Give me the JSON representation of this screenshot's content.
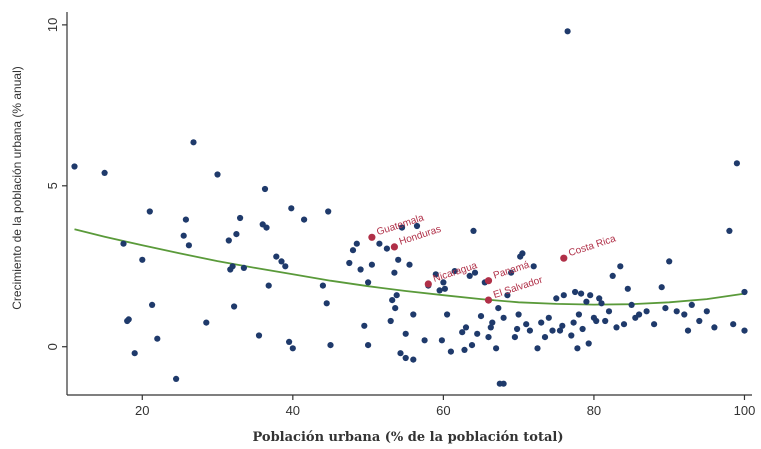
{
  "chart_data": {
    "type": "scatter",
    "xlabel": "Población urbana (% de la población total)",
    "ylabel": "Crecimiento de la población urbana (% anual)",
    "xlim": [
      10,
      101
    ],
    "ylim": [
      -1.5,
      10.4
    ],
    "xticks": [
      20,
      40,
      60,
      80,
      100
    ],
    "yticks": [
      0,
      5,
      10
    ],
    "grid": false,
    "colors": {
      "points": "#1f3a6b",
      "highlight": "#b03048",
      "fit": "#5a9a3a",
      "axis": "#333333"
    },
    "fit_line": {
      "x": [
        11,
        15,
        20,
        25,
        30,
        35,
        40,
        45,
        50,
        55,
        60,
        65,
        70,
        75,
        80,
        85,
        90,
        95,
        100
      ],
      "y": [
        3.65,
        3.42,
        3.15,
        2.9,
        2.66,
        2.45,
        2.25,
        2.05,
        1.88,
        1.73,
        1.6,
        1.48,
        1.38,
        1.33,
        1.31,
        1.32,
        1.38,
        1.48,
        1.65
      ]
    },
    "highlighted": [
      {
        "label": "Guatemala",
        "x": 50.5,
        "y": 3.4
      },
      {
        "label": "Honduras",
        "x": 53.5,
        "y": 3.1
      },
      {
        "label": "Nicaragua",
        "x": 58,
        "y": 1.95
      },
      {
        "label": "Panamá",
        "x": 66,
        "y": 2.05
      },
      {
        "label": "El Salvador",
        "x": 66,
        "y": 1.45
      },
      {
        "label": "Costa Rica",
        "x": 76,
        "y": 2.75
      }
    ],
    "points": [
      [
        11,
        5.6
      ],
      [
        15,
        5.4
      ],
      [
        17.5,
        3.2
      ],
      [
        18,
        0.8
      ],
      [
        18.2,
        0.85
      ],
      [
        19,
        -0.2
      ],
      [
        20,
        2.7
      ],
      [
        21,
        4.2
      ],
      [
        21.3,
        1.3
      ],
      [
        22,
        0.25
      ],
      [
        24.5,
        -1
      ],
      [
        25.5,
        3.45
      ],
      [
        25.8,
        3.95
      ],
      [
        26.2,
        3.15
      ],
      [
        26.8,
        6.35
      ],
      [
        28.5,
        0.75
      ],
      [
        30,
        5.35
      ],
      [
        31.5,
        3.3
      ],
      [
        31.7,
        2.4
      ],
      [
        32,
        2.5
      ],
      [
        32.2,
        1.25
      ],
      [
        32.5,
        3.5
      ],
      [
        33,
        4.0
      ],
      [
        33.5,
        2.45
      ],
      [
        35.5,
        0.35
      ],
      [
        36,
        3.8
      ],
      [
        36.3,
        4.9
      ],
      [
        36.8,
        1.9
      ],
      [
        36.5,
        3.7
      ],
      [
        37.8,
        2.8
      ],
      [
        38.5,
        2.65
      ],
      [
        39,
        2.5
      ],
      [
        39.5,
        0.15
      ],
      [
        39.8,
        4.3
      ],
      [
        40,
        -0.05
      ],
      [
        41.5,
        3.95
      ],
      [
        44,
        1.9
      ],
      [
        44.5,
        1.35
      ],
      [
        44.7,
        4.2
      ],
      [
        45,
        0.05
      ],
      [
        47.5,
        2.6
      ],
      [
        48,
        3.0
      ],
      [
        48.5,
        3.2
      ],
      [
        49,
        2.4
      ],
      [
        49.5,
        0.65
      ],
      [
        50,
        2.0
      ],
      [
        50,
        0.05
      ],
      [
        50.5,
        2.55
      ],
      [
        51.5,
        3.2
      ],
      [
        52.5,
        3.05
      ],
      [
        53,
        0.8
      ],
      [
        53.2,
        1.45
      ],
      [
        53.5,
        2.3
      ],
      [
        53.6,
        1.2
      ],
      [
        53.8,
        1.6
      ],
      [
        54,
        2.7
      ],
      [
        54.3,
        -0.2
      ],
      [
        54.5,
        3.7
      ],
      [
        55,
        0.4
      ],
      [
        55,
        -0.35
      ],
      [
        55.5,
        2.55
      ],
      [
        56,
        1.0
      ],
      [
        56,
        -0.4
      ],
      [
        56.5,
        3.75
      ],
      [
        57.5,
        0.2
      ],
      [
        58,
        1.9
      ],
      [
        59,
        2.25
      ],
      [
        59.5,
        1.75
      ],
      [
        59.8,
        0.2
      ],
      [
        60,
        2.0
      ],
      [
        60.2,
        1.8
      ],
      [
        60.5,
        1.0
      ],
      [
        61,
        -0.15
      ],
      [
        61.5,
        2.35
      ],
      [
        62.5,
        0.45
      ],
      [
        62.8,
        -0.1
      ],
      [
        63,
        0.6
      ],
      [
        63.5,
        2.2
      ],
      [
        63.8,
        0.05
      ],
      [
        64,
        3.6
      ],
      [
        64.2,
        2.3
      ],
      [
        64.5,
        0.4
      ],
      [
        65,
        0.95
      ],
      [
        65.5,
        2.0
      ],
      [
        66,
        0.3
      ],
      [
        66.3,
        0.6
      ],
      [
        66.5,
        0.75
      ],
      [
        67,
        -0.05
      ],
      [
        67.3,
        1.2
      ],
      [
        67.5,
        -1.15
      ],
      [
        68,
        -1.15
      ],
      [
        68,
        0.9
      ],
      [
        68.5,
        1.6
      ],
      [
        69,
        2.3
      ],
      [
        69.5,
        0.3
      ],
      [
        69.8,
        0.55
      ],
      [
        70,
        1.0
      ],
      [
        70.2,
        2.8
      ],
      [
        70.5,
        2.9
      ],
      [
        71,
        0.7
      ],
      [
        71.5,
        0.5
      ],
      [
        72,
        2.5
      ],
      [
        72.5,
        -0.05
      ],
      [
        73,
        0.75
      ],
      [
        73.5,
        0.3
      ],
      [
        74,
        0.9
      ],
      [
        74.5,
        0.5
      ],
      [
        75,
        1.5
      ],
      [
        75.5,
        0.5
      ],
      [
        75.8,
        0.65
      ],
      [
        76,
        1.6
      ],
      [
        76.5,
        9.8
      ],
      [
        77,
        0.35
      ],
      [
        77.3,
        0.75
      ],
      [
        77.5,
        1.7
      ],
      [
        77.8,
        -0.05
      ],
      [
        78,
        1.0
      ],
      [
        78.3,
        1.65
      ],
      [
        78.5,
        0.55
      ],
      [
        79,
        1.4
      ],
      [
        79.3,
        0.1
      ],
      [
        79.5,
        1.6
      ],
      [
        80,
        0.9
      ],
      [
        80.3,
        0.8
      ],
      [
        80.7,
        1.5
      ],
      [
        81,
        1.35
      ],
      [
        81.5,
        0.8
      ],
      [
        82,
        1.1
      ],
      [
        82.5,
        2.2
      ],
      [
        83,
        0.6
      ],
      [
        83.5,
        2.5
      ],
      [
        84,
        0.7
      ],
      [
        84.5,
        1.8
      ],
      [
        85,
        1.3
      ],
      [
        85.5,
        0.9
      ],
      [
        86,
        1.0
      ],
      [
        87,
        1.1
      ],
      [
        88,
        0.7
      ],
      [
        89,
        1.85
      ],
      [
        89.5,
        1.2
      ],
      [
        90,
        2.65
      ],
      [
        91,
        1.1
      ],
      [
        92,
        1.0
      ],
      [
        92.5,
        0.5
      ],
      [
        93,
        1.3
      ],
      [
        94,
        0.8
      ],
      [
        95,
        1.1
      ],
      [
        96,
        0.6
      ],
      [
        98,
        3.6
      ],
      [
        98.5,
        0.7
      ],
      [
        99,
        5.7
      ],
      [
        100,
        0.5
      ],
      [
        100,
        1.7
      ]
    ]
  }
}
